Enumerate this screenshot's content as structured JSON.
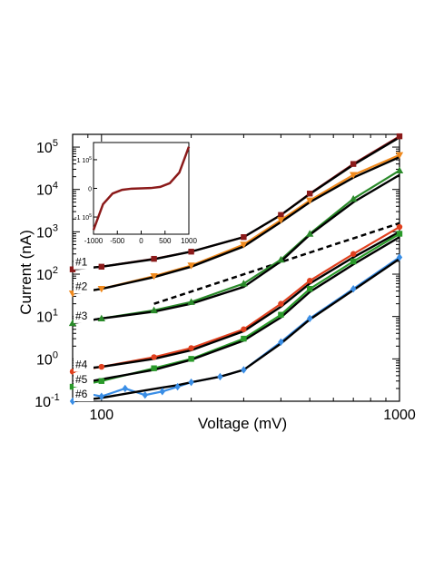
{
  "chart_data": [
    {
      "type": "line",
      "xlabel": "Voltage (mV)",
      "ylabel": "Current (nA)",
      "x_scale": "log",
      "y_scale": "log",
      "xlim": [
        80,
        1000
      ],
      "ylim": [
        0.1,
        200000
      ],
      "x_ticks": [
        {
          "value": 100,
          "label": "100"
        },
        {
          "value": 1000,
          "label": "1000"
        }
      ],
      "y_ticks": [
        {
          "value": 0.1,
          "base": "10",
          "exp": "-1"
        },
        {
          "value": 1,
          "base": "10",
          "exp": "0"
        },
        {
          "value": 10,
          "base": "10",
          "exp": "1"
        },
        {
          "value": 100,
          "base": "10",
          "exp": "2"
        },
        {
          "value": 1000,
          "base": "10",
          "exp": "3"
        },
        {
          "value": 10000,
          "base": "10",
          "exp": "4"
        },
        {
          "value": 100000,
          "base": "10",
          "exp": "5"
        }
      ],
      "grid": false,
      "legend": "none",
      "series": [
        {
          "label": "#1",
          "color": "#8b1a1a",
          "marker": "square",
          "x": [
            80,
            100,
            150,
            200,
            300,
            400,
            500,
            700,
            1000
          ],
          "y": [
            130,
            150,
            230,
            340,
            750,
            2500,
            8000,
            40000,
            180000
          ],
          "fit_y": [
            130,
            150,
            225,
            340,
            750,
            2500,
            7800,
            38000,
            170000
          ]
        },
        {
          "label": "#2",
          "color": "#f08a1e",
          "marker": "triangle-down",
          "x": [
            80,
            100,
            150,
            200,
            300,
            400,
            500,
            700,
            1000
          ],
          "y": [
            35,
            45,
            90,
            160,
            500,
            1900,
            5500,
            22000,
            65000
          ],
          "fit_y": [
            35,
            45,
            85,
            150,
            450,
            1700,
            5000,
            19000,
            58000
          ]
        },
        {
          "label": "#3",
          "color": "#2a8a2a",
          "marker": "triangle-up",
          "x": [
            80,
            100,
            150,
            200,
            300,
            400,
            500,
            700,
            1000
          ],
          "y": [
            7,
            9,
            14,
            22,
            60,
            220,
            900,
            6000,
            28000
          ],
          "fit_y": [
            7,
            9,
            13,
            20,
            50,
            200,
            850,
            5000,
            22000
          ]
        },
        {
          "label": "#4",
          "color": "#e0401e",
          "marker": "circle",
          "x": [
            80,
            100,
            150,
            200,
            300,
            400,
            500,
            700,
            1000
          ],
          "y": [
            0.5,
            0.65,
            1.1,
            1.8,
            5,
            20,
            70,
            300,
            1300
          ],
          "fit_y": [
            0.55,
            0.65,
            1.0,
            1.6,
            4.5,
            17,
            60,
            250,
            1000
          ]
        },
        {
          "label": "#5",
          "color": "#2a9a2a",
          "marker": "square",
          "x": [
            80,
            100,
            150,
            200,
            300,
            400,
            500,
            700,
            1000
          ],
          "y": [
            0.22,
            0.3,
            0.6,
            1.0,
            3,
            11,
            45,
            200,
            900
          ],
          "fit_y": [
            0.25,
            0.33,
            0.55,
            0.95,
            2.7,
            9.5,
            38,
            170,
            750
          ]
        },
        {
          "label": "#6",
          "color": "#3a8ee6",
          "marker": "diamond",
          "x": [
            80,
            90,
            100,
            120,
            140,
            160,
            180,
            200,
            250,
            300,
            400,
            500,
            700,
            1000
          ],
          "y": [
            0.1,
            0.15,
            0.13,
            0.2,
            0.14,
            0.17,
            0.22,
            0.28,
            0.38,
            0.55,
            2.5,
            9,
            45,
            250
          ],
          "fit_y": [
            0.1,
            0.11,
            0.12,
            0.15,
            0.18,
            0.21,
            0.24,
            0.28,
            0.38,
            0.55,
            2.3,
            8.5,
            42,
            230
          ]
        }
      ],
      "reference_line": {
        "style": "dashed",
        "color": "#000000",
        "x": [
          150,
          1000
        ],
        "y": [
          20,
          1600
        ]
      }
    },
    {
      "type": "line",
      "role": "inset",
      "xlim": [
        -1000,
        1000
      ],
      "ylim": [
        -1.6,
        1.6
      ],
      "x_ticks": [
        {
          "value": -1000,
          "label": "-1000"
        },
        {
          "value": -500,
          "label": "-500"
        },
        {
          "value": 0,
          "label": "0"
        },
        {
          "value": 500,
          "label": "500"
        },
        {
          "value": 1000,
          "label": "1000"
        }
      ],
      "y_ticks": [
        {
          "value": 1,
          "label": "1 10",
          "exp": "5"
        },
        {
          "value": 0,
          "label": "0"
        },
        {
          "value": -1,
          "label": "-1 10",
          "exp": "5"
        }
      ],
      "series": [
        {
          "color": "#8b1a1a",
          "x": [
            -1000,
            -800,
            -600,
            -400,
            -200,
            0,
            200,
            400,
            600,
            800,
            1000
          ],
          "y": [
            -1.45,
            -0.55,
            -0.18,
            -0.05,
            -0.01,
            0,
            0.01,
            0.05,
            0.18,
            0.55,
            1.45
          ]
        }
      ]
    }
  ]
}
